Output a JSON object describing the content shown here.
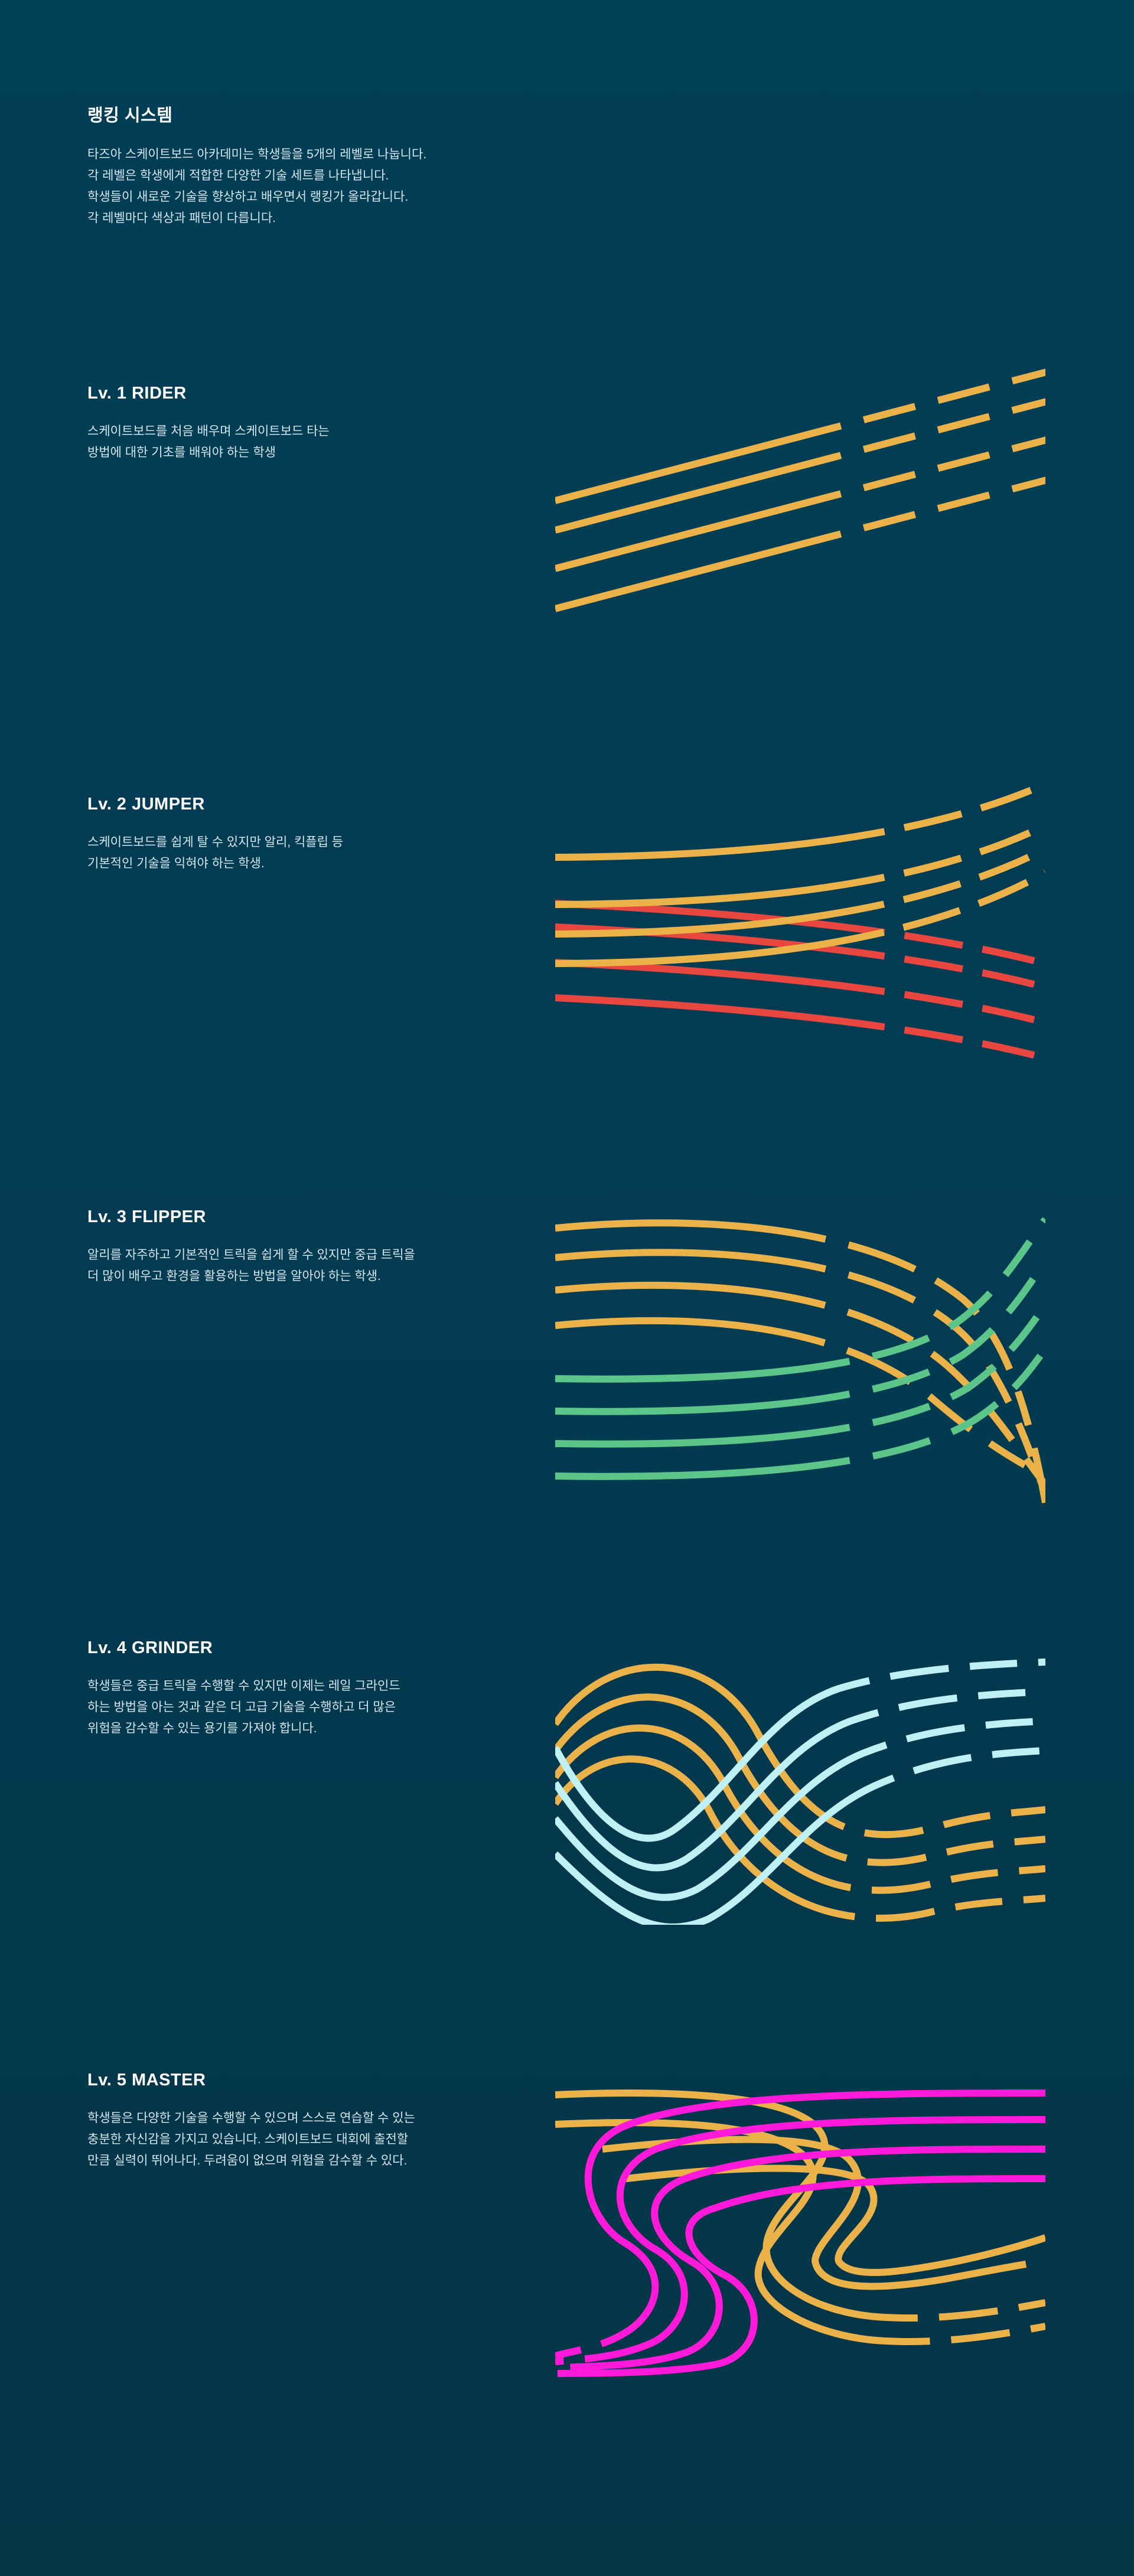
{
  "intro": {
    "title": "랭킹 시스템",
    "lines": [
      "타즈아 스케이트보드 아카데미는 학생들을 5개의 레벨로 나눕니다.",
      "각 레벨은 학생에게 적합한 다양한 기술 세트를 나타냅니다.",
      "학생들이 새로운 기술을 향상하고 배우면서 랭킹가 올라갑니다.",
      "각 레벨마다 색상과 패턴이 다릅니다."
    ]
  },
  "levels": [
    {
      "title": "Lv. 1 RIDER",
      "lines": [
        "스케이트보드를 처음 배우며 스케이트보드 타는",
        "방법에 대한 기초를 배워야 하는 학생"
      ]
    },
    {
      "title": "Lv. 2 JUMPER",
      "lines": [
        "스케이트보드를 쉽게 탈 수 있지만 알리, 킥플립 등",
        "기본적인 기술을 익혀야 하는 학생."
      ]
    },
    {
      "title": "Lv. 3 FLIPPER",
      "lines": [
        "알리를 자주하고 기본적인 트릭을 쉽게 할 수 있지만 중급 트릭을",
        "더 많이 배우고 환경을 활용하는 방법을 알아야 하는 학생."
      ]
    },
    {
      "title": "Lv. 4 GRINDER",
      "lines": [
        "학생들은 중급 트릭을 수행할 수 있지만 이제는 레일 그라인드",
        "하는 방법을 아는 것과 같은 더 고급 기술을 수행하고 더 많은",
        "위험을 감수할 수 있는 용기를 가져야 합니다."
      ]
    },
    {
      "title": "Lv. 5 MASTER",
      "lines": [
        "학생들은 다양한 기술을 수행할 수 있으며 스스로 연습할 수 있는",
        "충분한 자신감을 가지고 있습니다. 스케이트보드 대회에 출전할",
        "만큼 실력이 뛰어나다. 두려움이 없으며 위험을 감수할 수 있다."
      ]
    }
  ],
  "colors": {
    "background": "#013f56",
    "orange": "#ecb24a",
    "red": "#e8463f",
    "green": "#5bc58a",
    "cyan": "#bff0f4",
    "magenta": "#ff19d8"
  },
  "patterns": [
    {
      "level": "Lv. 1 RIDER",
      "pattern": "straight-diagonal-lines",
      "colors": [
        "orange"
      ]
    },
    {
      "level": "Lv. 2 JUMPER",
      "pattern": "crossing-curves",
      "colors": [
        "orange",
        "red"
      ]
    },
    {
      "level": "Lv. 3 FLIPPER",
      "pattern": "arcs-and-zigzag",
      "colors": [
        "orange",
        "green"
      ]
    },
    {
      "level": "Lv. 4 GRINDER",
      "pattern": "interlaced-waves",
      "colors": [
        "orange",
        "cyan"
      ]
    },
    {
      "level": "Lv. 5 MASTER",
      "pattern": "s-shaped-loops",
      "colors": [
        "orange",
        "magenta"
      ]
    }
  ]
}
